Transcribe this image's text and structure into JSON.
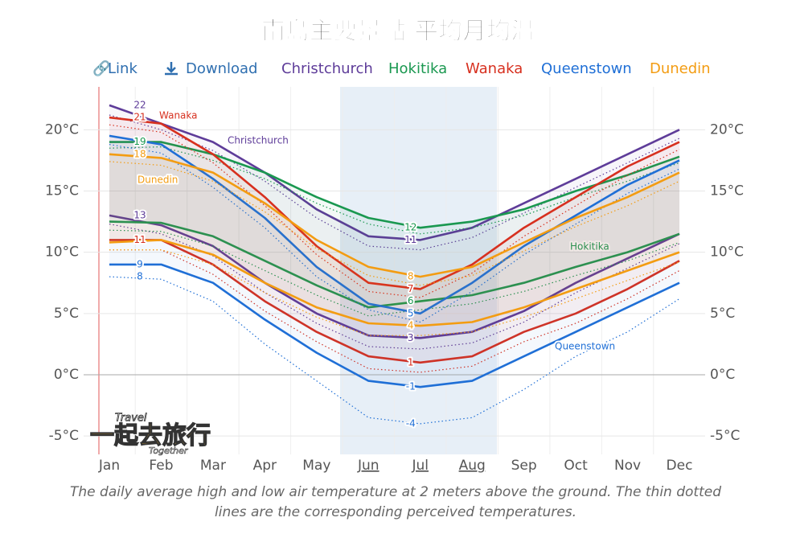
{
  "title": "南島主要景點 平均月均溫",
  "toolbar": {
    "link": "Link",
    "download": "Download"
  },
  "chart_data": {
    "type": "temperature-band",
    "categories": [
      "Jan",
      "Feb",
      "Mar",
      "Apr",
      "May",
      "Jun",
      "Jul",
      "Aug",
      "Sep",
      "Oct",
      "Nov",
      "Dec"
    ],
    "ylim": [
      -6.5,
      23.5
    ],
    "yticks": [
      {
        "value": -5,
        "label": "-5°C"
      },
      {
        "value": 0,
        "label": "0°C"
      },
      {
        "value": 5,
        "label": "5°C"
      },
      {
        "value": 10,
        "label": "10°C"
      },
      {
        "value": 15,
        "label": "15°C"
      },
      {
        "value": 20,
        "label": "20°C"
      }
    ],
    "grid": true,
    "series": [
      {
        "name": "Christchurch",
        "color": "#5e3c99",
        "high": [
          22,
          20.5,
          19,
          16.5,
          13.5,
          11.3,
          11,
          12,
          14,
          16,
          18,
          20
        ],
        "low": [
          13,
          12.2,
          10.5,
          7.5,
          5,
          3.2,
          3,
          3.5,
          5.2,
          7.5,
          9.5,
          11.5
        ],
        "high_perceived": [
          21.2,
          20,
          18.3,
          15.8,
          12.8,
          10.5,
          10.2,
          11.2,
          13.2,
          15.3,
          17.3,
          19.3
        ],
        "low_perceived": [
          12.3,
          11.5,
          9.7,
          6.7,
          4.2,
          2.3,
          2.1,
          2.6,
          4.3,
          6.7,
          8.7,
          10.7
        ]
      },
      {
        "name": "Hokitika",
        "color": "#1a9850",
        "high": [
          19,
          19,
          18,
          16.5,
          14.5,
          12.8,
          12,
          12.5,
          13.5,
          15,
          16.3,
          17.8
        ],
        "low": [
          12.5,
          12.4,
          11.3,
          9.3,
          7.3,
          5.5,
          6,
          6.5,
          7.5,
          8.8,
          10,
          11.5
        ],
        "high_perceived": [
          18.5,
          18.6,
          17.5,
          16,
          14,
          12.3,
          11.5,
          12,
          13,
          14.5,
          15.8,
          17.3
        ],
        "low_perceived": [
          11.8,
          11.7,
          10.5,
          8.5,
          6.5,
          4.8,
          5.3,
          5.8,
          6.8,
          8.1,
          9.3,
          10.8
        ]
      },
      {
        "name": "Wanaka",
        "color": "#d7301f",
        "high": [
          21,
          20.5,
          18,
          14.5,
          10.5,
          7.5,
          7,
          9,
          12,
          14.5,
          17,
          19
        ],
        "low": [
          11,
          11,
          9,
          6,
          3.5,
          1.5,
          1,
          1.5,
          3.5,
          5,
          7,
          9.3
        ],
        "high_perceived": [
          20.4,
          19.8,
          17.3,
          13.8,
          9.8,
          6.8,
          6.3,
          8.3,
          11.3,
          13.8,
          16.3,
          18.4
        ],
        "low_perceived": [
          10.2,
          10.2,
          8.2,
          5.2,
          2.7,
          0.5,
          0.2,
          0.7,
          2.7,
          4.2,
          6.2,
          8.5
        ]
      },
      {
        "name": "Queenstown",
        "color": "#1f6fd6",
        "high": [
          19.5,
          18.8,
          16,
          12.8,
          8.8,
          5.8,
          5,
          7.5,
          10.5,
          13,
          15.5,
          17.5
        ],
        "low": [
          9,
          9,
          7.5,
          4.5,
          1.8,
          -0.5,
          -1,
          -0.5,
          1.5,
          3.5,
          5.5,
          7.5
        ],
        "high_perceived": [
          18.8,
          18.1,
          15.3,
          12,
          8,
          5.3,
          4.3,
          6.8,
          9.8,
          12.3,
          14.8,
          16.8
        ],
        "low_perceived": [
          8,
          7.8,
          6,
          2.5,
          -0.5,
          -3.5,
          -4,
          -3.5,
          -1.2,
          1.5,
          3.5,
          6.2
        ]
      },
      {
        "name": "Dunedin",
        "color": "#f39c12",
        "high": [
          18,
          17.7,
          16.5,
          14,
          11,
          8.8,
          8,
          8.8,
          10.8,
          12.8,
          14.5,
          16.5
        ],
        "low": [
          10.8,
          11,
          9.8,
          7.5,
          5.5,
          4.2,
          4,
          4.3,
          5.5,
          7,
          8.5,
          10
        ],
        "high_perceived": [
          17.4,
          17.1,
          15.8,
          13.3,
          10.3,
          8.1,
          7.3,
          8.1,
          10.1,
          12.1,
          13.8,
          15.8
        ],
        "low_perceived": [
          10.2,
          10.2,
          9,
          6.7,
          4.7,
          3.2,
          3.2,
          3.5,
          4.7,
          6.2,
          7.7,
          9.2
        ]
      }
    ]
  },
  "caption": [
    "The daily average high and low air temperature at 2 meters above the ground. The thin dotted",
    "lines are the corresponding perceived temperatures."
  ],
  "watermark": {
    "top": "Travel",
    "main": "一起去旅行",
    "bottom": "Together"
  }
}
